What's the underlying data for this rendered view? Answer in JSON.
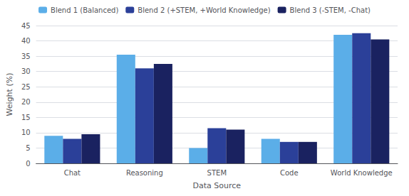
{
  "chart_data": {
    "type": "bar",
    "xlabel": "Data Source",
    "ylabel": "Weight (%)",
    "categories": [
      "Chat",
      "Reasoning",
      "STEM",
      "Code",
      "World Knowledge"
    ],
    "series": [
      {
        "name": "Blend 1 (Balanced)",
        "color": "#5baee8",
        "values": [
          9.0,
          35.5,
          5.0,
          8.0,
          42.0
        ]
      },
      {
        "name": "Blend 2 (+STEM, +World Knowledge)",
        "color": "#2b4099",
        "values": [
          8.0,
          31.0,
          11.5,
          7.0,
          42.5
        ]
      },
      {
        "name": "Blend 3 (-STEM, -Chat)",
        "color": "#1a2260",
        "values": [
          9.5,
          32.5,
          11.0,
          7.0,
          40.5
        ]
      }
    ],
    "ylim": [
      0,
      45
    ],
    "yticks": [
      0,
      5,
      10,
      15,
      20,
      25,
      30,
      35,
      40,
      45
    ],
    "grid": true,
    "legend": "top"
  }
}
